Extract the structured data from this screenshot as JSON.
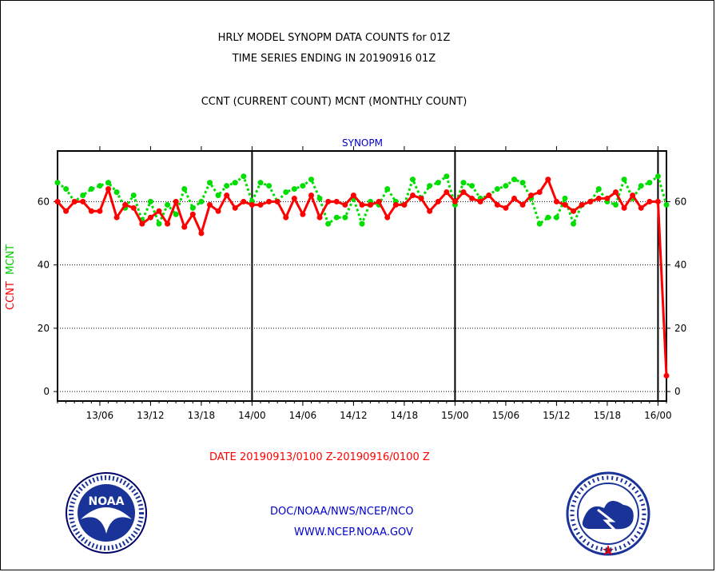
{
  "header": {
    "title_line1": "HRLY MODEL SYNOPM DATA COUNTS for 01Z",
    "title_line2": "TIME SERIES ENDING IN 20190916 01Z",
    "title_line3": "CCNT (CURRENT COUNT) MCNT (MONTHLY COUNT)"
  },
  "chart_data": {
    "type": "line",
    "title": "SYNOPM",
    "ylabel_parts": [
      "CCNT",
      "MCNT"
    ],
    "xlabel": "DATE 20190913/0100 Z-20190916/0100 Z",
    "ylim": [
      -3,
      76
    ],
    "x_tick_labels": [
      "13/06",
      "13/12",
      "13/18",
      "14/00",
      "14/06",
      "14/12",
      "14/18",
      "15/00",
      "15/06",
      "15/12",
      "15/18",
      "16/00"
    ],
    "x_tick_hours": [
      5,
      11,
      17,
      23,
      29,
      35,
      41,
      47,
      53,
      59,
      65,
      71
    ],
    "y_ticks": [
      0,
      20,
      40,
      60
    ],
    "day_boundary_hours": [
      23,
      47,
      71
    ],
    "grid": "horizontal dotted",
    "colors": {
      "CCNT": "#ff0000",
      "MCNT": "#00dd00"
    },
    "series": [
      {
        "name": "CCNT",
        "x_hours": [
          0,
          1,
          2,
          3,
          4,
          5,
          6,
          7,
          8,
          9,
          10,
          11,
          12,
          13,
          14,
          15,
          16,
          17,
          18,
          19,
          20,
          21,
          22,
          23,
          24,
          25,
          26,
          27,
          28,
          29,
          30,
          31,
          32,
          33,
          34,
          35,
          36,
          37,
          38,
          39,
          40,
          41,
          42,
          43,
          44,
          45,
          46,
          47,
          48,
          49,
          50,
          51,
          52,
          53,
          54,
          55,
          56,
          57,
          58,
          59,
          60,
          61,
          62,
          63,
          64,
          65,
          66,
          67,
          68,
          69,
          70,
          71,
          72
        ],
        "values": [
          60,
          57,
          60,
          60,
          57,
          57,
          64,
          55,
          59,
          58,
          53,
          55,
          57,
          53,
          60,
          52,
          56,
          50,
          59,
          57,
          62,
          58,
          60,
          59,
          59,
          60,
          60,
          55,
          61,
          56,
          62,
          55,
          60,
          60,
          59,
          62,
          59,
          59,
          60,
          55,
          59,
          59,
          62,
          61,
          57,
          60,
          63,
          60,
          63,
          61,
          60,
          62,
          59,
          58,
          61,
          59,
          62,
          63,
          67,
          60,
          59,
          57,
          59,
          60,
          61,
          61,
          63,
          58,
          62,
          58,
          60,
          60,
          5
        ]
      },
      {
        "name": "MCNT",
        "x_hours": [
          0,
          1,
          2,
          3,
          4,
          5,
          6,
          7,
          8,
          9,
          10,
          11,
          12,
          13,
          14,
          15,
          16,
          17,
          18,
          19,
          20,
          21,
          22,
          23,
          24,
          25,
          26,
          27,
          28,
          29,
          30,
          31,
          32,
          33,
          34,
          35,
          36,
          37,
          38,
          39,
          40,
          41,
          42,
          43,
          44,
          45,
          46,
          47,
          48,
          49,
          50,
          51,
          52,
          53,
          54,
          55,
          56,
          57,
          58,
          59,
          60,
          61,
          62,
          63,
          64,
          65,
          66,
          67,
          68,
          69,
          70,
          71,
          72
        ],
        "values": [
          66,
          64,
          60,
          62,
          64,
          65,
          66,
          63,
          58,
          62,
          54,
          60,
          53,
          59,
          56,
          64,
          58,
          60,
          66,
          62,
          65,
          66,
          68,
          60,
          66,
          65,
          60,
          63,
          64,
          65,
          67,
          61,
          53,
          55,
          55,
          61,
          53,
          60,
          59,
          64,
          60,
          59,
          67,
          61,
          65,
          66,
          68,
          59,
          66,
          65,
          61,
          62,
          64,
          65,
          67,
          66,
          61,
          53,
          55,
          55,
          61,
          53,
          59,
          60,
          64,
          60,
          59,
          67,
          61,
          65,
          66,
          68,
          59
        ]
      }
    ]
  },
  "footer": {
    "agency": "DOC/NOAA/NWS/NCEP/NCO",
    "website": "WWW.NCEP.NOAA.GOV"
  }
}
